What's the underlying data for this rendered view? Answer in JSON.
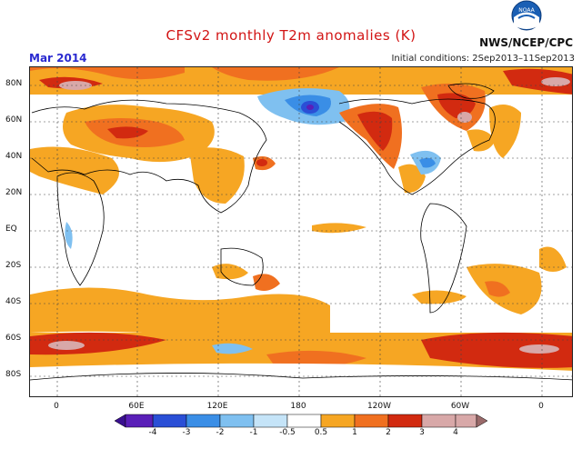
{
  "title": "CFSv2 monthly T2m anomalies (K)",
  "month": "Mar 2014",
  "agency": "NWS/NCEP/CPC",
  "initial_conditions": "Initial conditions: 2Sep2013–11Sep2013",
  "logo_text": "NOAA",
  "lat_labels": [
    "80N",
    "60N",
    "40N",
    "20N",
    "EQ",
    "20S",
    "40S",
    "60S",
    "80S"
  ],
  "lon_labels": [
    "0",
    "60E",
    "120E",
    "180",
    "120W",
    "60W",
    "0"
  ],
  "legend": {
    "labels": [
      "-4",
      "-3",
      "-2",
      "-1",
      "-0.5",
      "0.5",
      "1",
      "2",
      "3",
      "4"
    ],
    "colors": [
      "#5a1fb8",
      "#2a4fd6",
      "#3a8ee6",
      "#7fc0f0",
      "#c5e4f8",
      "#ffffff",
      "#f6a623",
      "#f07020",
      "#d22a10",
      "#d8a8a8"
    ]
  }
}
